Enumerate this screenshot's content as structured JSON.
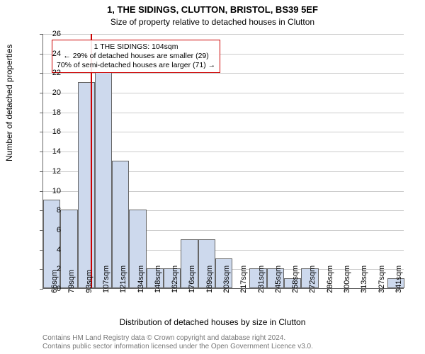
{
  "titles": {
    "line1": "1, THE SIDINGS, CLUTTON, BRISTOL, BS39 5EF",
    "line2": "Size of property relative to detached houses in Clutton"
  },
  "yaxis": {
    "label": "Number of detached properties",
    "min": 0,
    "max": 26,
    "step": 2
  },
  "xaxis": {
    "label": "Distribution of detached houses by size in Clutton",
    "tick_labels": [
      "66sqm",
      "79sqm",
      "93sqm",
      "107sqm",
      "121sqm",
      "134sqm",
      "148sqm",
      "162sqm",
      "176sqm",
      "189sqm",
      "203sqm",
      "217sqm",
      "231sqm",
      "245sqm",
      "258sqm",
      "272sqm",
      "286sqm",
      "300sqm",
      "313sqm",
      "327sqm",
      "341sqm"
    ]
  },
  "chart": {
    "type": "histogram",
    "n_bars": 21,
    "values": [
      9,
      8,
      21,
      22,
      13,
      8,
      2,
      2,
      5,
      5,
      3,
      0,
      2,
      2,
      1,
      2,
      0,
      0,
      0,
      0,
      1
    ],
    "bar_fill": "#cdd9ed",
    "bar_border": "#666666",
    "grid_color": "#cccccc",
    "background": "#ffffff",
    "reference_line": {
      "value_sqm": 104,
      "color": "#cc0000",
      "bar_index_position": 2.77
    }
  },
  "annotation": {
    "border_color": "#cc0000",
    "lines": [
      "1 THE SIDINGS: 104sqm",
      "← 29% of detached houses are smaller (29)",
      "70% of semi-detached houses are larger (71) →"
    ]
  },
  "attribution": {
    "line1": "Contains HM Land Registry data © Crown copyright and database right 2024.",
    "line2": "Contains public sector information licensed under the Open Government Licence v3.0."
  }
}
